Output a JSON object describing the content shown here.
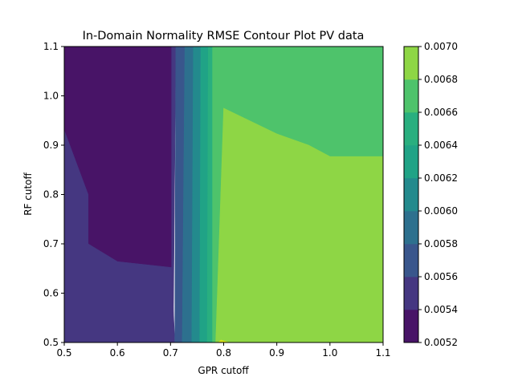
{
  "chart_data": {
    "type": "contour",
    "title": "In-Domain Normality RMSE Contour Plot PV data",
    "xlabel": "GPR cutoff",
    "ylabel": "RF cutoff",
    "xlim": [
      0.5,
      1.1
    ],
    "ylim": [
      0.5,
      1.1
    ],
    "x_ticks": [
      "0.5",
      "0.6",
      "0.7",
      "0.8",
      "0.9",
      "1.0",
      "1.1"
    ],
    "y_ticks": [
      "0.5",
      "0.6",
      "0.7",
      "0.8",
      "0.9",
      "1.0",
      "1.1"
    ],
    "colorbar": {
      "levels": [
        0.0052,
        0.0054,
        0.0056,
        0.0058,
        0.006,
        0.0062,
        0.0064,
        0.0066,
        0.0068,
        0.007
      ],
      "tick_labels": [
        "0.0052",
        "0.0054",
        "0.0056",
        "0.0058",
        "0.0060",
        "0.0062",
        "0.0064",
        "0.0066",
        "0.0068",
        "0.0070"
      ],
      "colors": [
        "#481467",
        "#453781",
        "#39568c",
        "#2d708e",
        "#238a8d",
        "#20a386",
        "#29af7f",
        "#4ec36b",
        "#8ed645",
        "#d8e219"
      ]
    },
    "regions": [
      {
        "band": 0,
        "points": [
          [
            0.5,
            1.1
          ],
          [
            0.702,
            1.1
          ],
          [
            0.702,
            0.652
          ],
          [
            0.6,
            0.664
          ],
          [
            0.545,
            0.7
          ],
          [
            0.545,
            0.8
          ],
          [
            0.5,
            0.93
          ]
        ]
      },
      {
        "band": 1,
        "points": [
          [
            0.5,
            0.5
          ],
          [
            0.708,
            0.5
          ],
          [
            0.702,
            0.652
          ],
          [
            0.6,
            0.664
          ],
          [
            0.545,
            0.7
          ],
          [
            0.545,
            0.8
          ],
          [
            0.5,
            0.93
          ]
        ]
      },
      {
        "band": 1,
        "points": [
          [
            0.702,
            1.1
          ],
          [
            0.71,
            1.1
          ],
          [
            0.705,
            0.5
          ],
          [
            0.702,
            0.652
          ]
        ]
      },
      {
        "band": 2,
        "points": [
          [
            0.71,
            1.1
          ],
          [
            0.727,
            1.1
          ],
          [
            0.722,
            0.5
          ],
          [
            0.708,
            0.5
          ]
        ]
      },
      {
        "band": 3,
        "points": [
          [
            0.727,
            1.1
          ],
          [
            0.743,
            1.1
          ],
          [
            0.74,
            0.5
          ],
          [
            0.722,
            0.5
          ]
        ]
      },
      {
        "band": 4,
        "points": [
          [
            0.743,
            1.1
          ],
          [
            0.757,
            1.1
          ],
          [
            0.755,
            0.5
          ],
          [
            0.74,
            0.5
          ]
        ]
      },
      {
        "band": 5,
        "points": [
          [
            0.757,
            1.1
          ],
          [
            0.771,
            1.1
          ],
          [
            0.769,
            0.5
          ],
          [
            0.755,
            0.5
          ]
        ]
      },
      {
        "band": 6,
        "points": [
          [
            0.771,
            1.1
          ],
          [
            0.779,
            1.1
          ],
          [
            0.779,
            0.5
          ],
          [
            0.769,
            0.5
          ]
        ]
      },
      {
        "band": 7,
        "points": [
          [
            0.779,
            1.1
          ],
          [
            1.1,
            1.1
          ],
          [
            1.1,
            0.877
          ],
          [
            1.0,
            0.877
          ],
          [
            0.96,
            0.9
          ],
          [
            0.9,
            0.923
          ],
          [
            0.8,
            0.975
          ],
          [
            0.785,
            0.5
          ],
          [
            0.779,
            0.5
          ]
        ]
      },
      {
        "band": 8,
        "points": [
          [
            0.8,
            0.975
          ],
          [
            0.9,
            0.923
          ],
          [
            0.96,
            0.9
          ],
          [
            1.0,
            0.877
          ],
          [
            1.1,
            0.877
          ],
          [
            1.1,
            0.5
          ],
          [
            0.785,
            0.5
          ]
        ]
      },
      {
        "band": 9,
        "points": [
          [
            0.79,
            0.5
          ],
          [
            0.81,
            0.5
          ],
          [
            0.795,
            0.505
          ]
        ]
      }
    ]
  }
}
